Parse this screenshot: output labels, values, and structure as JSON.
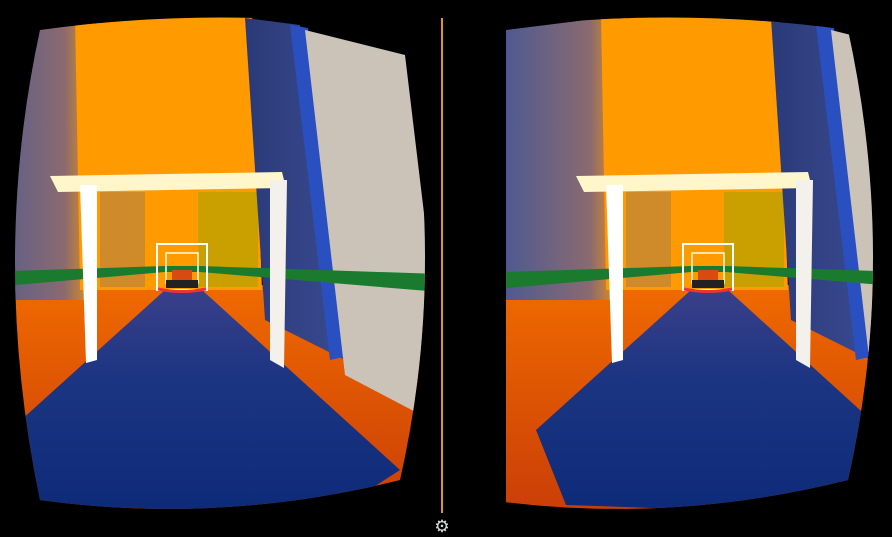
{
  "app": {
    "view_mode": "stereo-vr",
    "eyes": [
      "left",
      "right"
    ]
  },
  "settings_button": {
    "icon": "gear-icon",
    "glyph": "⚙"
  },
  "colors": {
    "divider": "#e0913a",
    "road": "#12307a",
    "floor": "#d14a08",
    "building": "#ff9a00",
    "stripe": "#1a7a2e",
    "gate": "#ffffff"
  }
}
